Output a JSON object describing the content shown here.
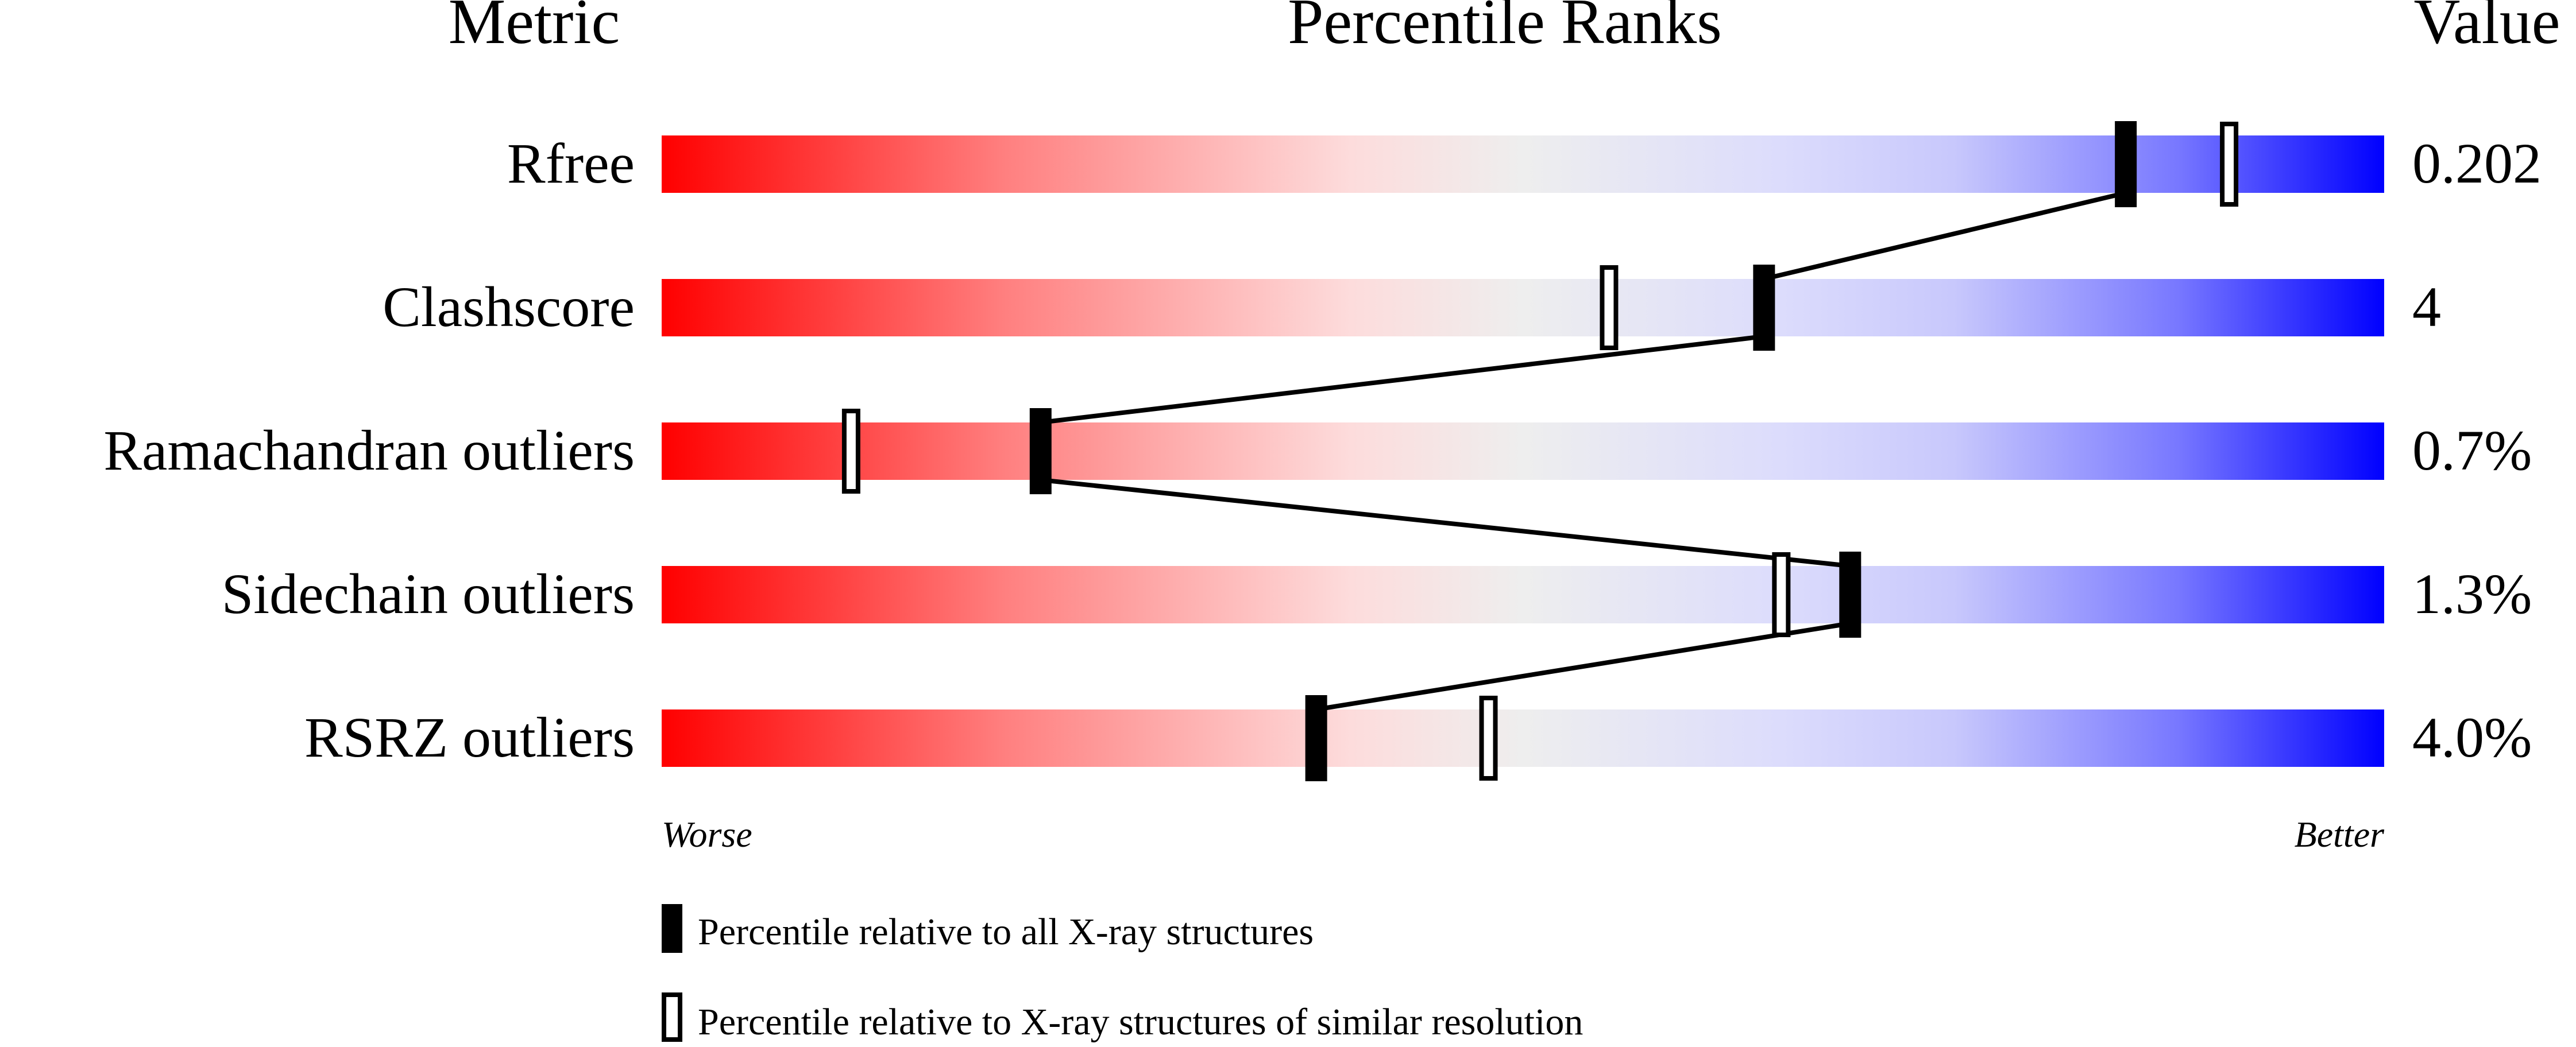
{
  "chart_data": {
    "type": "percentile-bar",
    "headers": {
      "metric": "Metric",
      "ranks": "Percentile Ranks",
      "value": "Value"
    },
    "xlim": [
      0,
      100
    ],
    "axis_labels": {
      "left": "Worse",
      "right": "Better"
    },
    "metrics": [
      {
        "name": "Rfree",
        "value": "0.202",
        "percentile_all": 85,
        "percentile_similar": 91
      },
      {
        "name": "Clashscore",
        "value": "4",
        "percentile_all": 64,
        "percentile_similar": 55
      },
      {
        "name": "Ramachandran outliers",
        "value": "0.7%",
        "percentile_all": 22,
        "percentile_similar": 11
      },
      {
        "name": "Sidechain outliers",
        "value": "1.3%",
        "percentile_all": 69,
        "percentile_similar": 65
      },
      {
        "name": "RSRZ outliers",
        "value": "4.0%",
        "percentile_all": 38,
        "percentile_similar": 48
      }
    ],
    "legend": [
      {
        "marker": "filled",
        "label": "Percentile relative to all X-ray structures"
      },
      {
        "marker": "open",
        "label": "Percentile relative to X-ray structures of similar resolution"
      }
    ],
    "colors": {
      "worse": "#ff0000",
      "middle": "#eeeeee",
      "better": "#0000ff"
    }
  }
}
